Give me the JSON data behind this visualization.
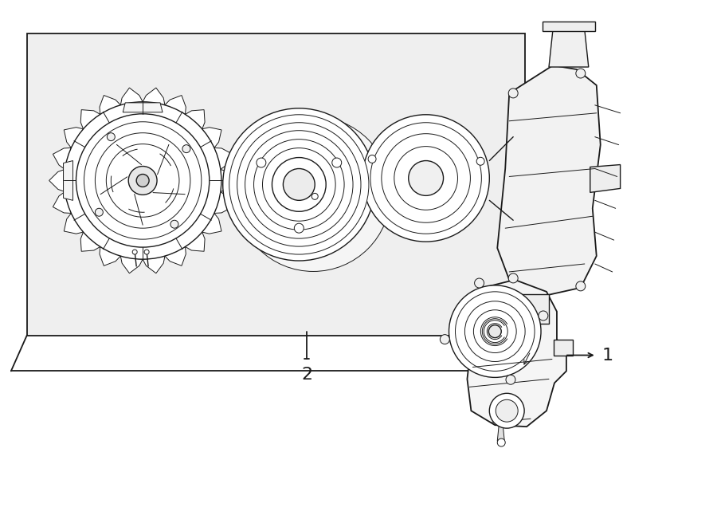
{
  "bg_color": "#ffffff",
  "box_fill": "#efefef",
  "line_color": "#1a1a1a",
  "fig_width": 9.0,
  "fig_height": 6.61,
  "dpi": 100,
  "font_size_label": 16,
  "lw_main": 1.3,
  "lw_thin": 0.7,
  "lw_med": 1.0
}
